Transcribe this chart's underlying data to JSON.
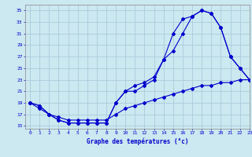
{
  "xlabel": "Graphe des températures (°c)",
  "background_color": "#cce8f0",
  "grid_color": "#aaccdd",
  "line_color": "#0000cc",
  "line1": {
    "x": [
      0,
      1,
      2,
      3,
      4,
      5,
      6,
      7,
      8,
      9,
      10,
      11,
      12,
      13,
      14,
      15,
      16,
      17,
      18,
      19,
      20,
      21,
      22,
      23
    ],
    "y": [
      19,
      18.5,
      17,
      16,
      15.5,
      15.5,
      15.5,
      15.5,
      15.5,
      19.0,
      21.0,
      22.0,
      22.5,
      23.5,
      26.5,
      31.0,
      33.5,
      34.0,
      35.0,
      34.5,
      32.0,
      27.0,
      25.0,
      23.0
    ]
  },
  "line2": {
    "x": [
      0,
      1,
      2,
      3,
      4,
      5,
      6,
      7,
      8,
      9,
      10,
      11,
      12,
      13,
      14,
      15,
      16,
      17,
      18,
      19,
      20,
      21,
      22,
      23
    ],
    "y": [
      19,
      18.5,
      17,
      16,
      15.5,
      15.5,
      15.5,
      15.5,
      15.5,
      19.0,
      21.0,
      21.0,
      22.0,
      23.0,
      26.5,
      28.0,
      31.0,
      34.0,
      35.0,
      34.5,
      32.0,
      27.0,
      25.0,
      23.0
    ]
  },
  "line3": {
    "x": [
      0,
      1,
      2,
      3,
      4,
      5,
      6,
      7,
      8,
      9,
      10,
      11,
      12,
      13,
      14,
      15,
      16,
      17,
      18,
      19,
      20,
      21,
      22,
      23
    ],
    "y": [
      19,
      18.0,
      17.0,
      16.5,
      16.0,
      16.0,
      16.0,
      16.0,
      16.0,
      17.0,
      18.0,
      18.5,
      19.0,
      19.5,
      20.0,
      20.5,
      21.0,
      21.5,
      22.0,
      22.0,
      22.5,
      22.5,
      23.0,
      23.0
    ]
  },
  "ylim": [
    14.5,
    36
  ],
  "xlim": [
    -0.5,
    23
  ],
  "yticks": [
    15,
    17,
    19,
    21,
    23,
    25,
    27,
    29,
    31,
    33,
    35
  ],
  "xticks": [
    0,
    1,
    2,
    3,
    4,
    5,
    6,
    7,
    8,
    9,
    10,
    11,
    12,
    13,
    14,
    15,
    16,
    17,
    18,
    19,
    20,
    21,
    22,
    23
  ]
}
